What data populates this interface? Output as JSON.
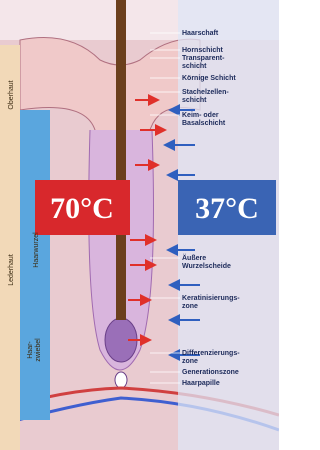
{
  "temperatures": {
    "hot": "70°C",
    "body": "37°C"
  },
  "right_labels": [
    [
      "Haarschaft"
    ],
    [
      "Hornschicht"
    ],
    [
      "Transparent-",
      "schicht"
    ],
    [
      "Körnige Schicht"
    ],
    [
      "Stachelzellen-",
      "schicht"
    ],
    [
      "Keim- oder",
      "Basalschicht"
    ],
    [
      "Äußere",
      "Wurzelscheide"
    ],
    [
      "Keratinisierungs-",
      "zone"
    ],
    [
      "Differenzierungs-",
      "zone"
    ],
    [
      "Generationszone"
    ],
    [
      "Haarpapille"
    ]
  ],
  "left_labels": {
    "epidermis": "Oberhaut",
    "dermis": "Lederhaut",
    "root": "Haarwurzel",
    "bulb": [
      "Haar-",
      "zwiebel"
    ]
  }
}
